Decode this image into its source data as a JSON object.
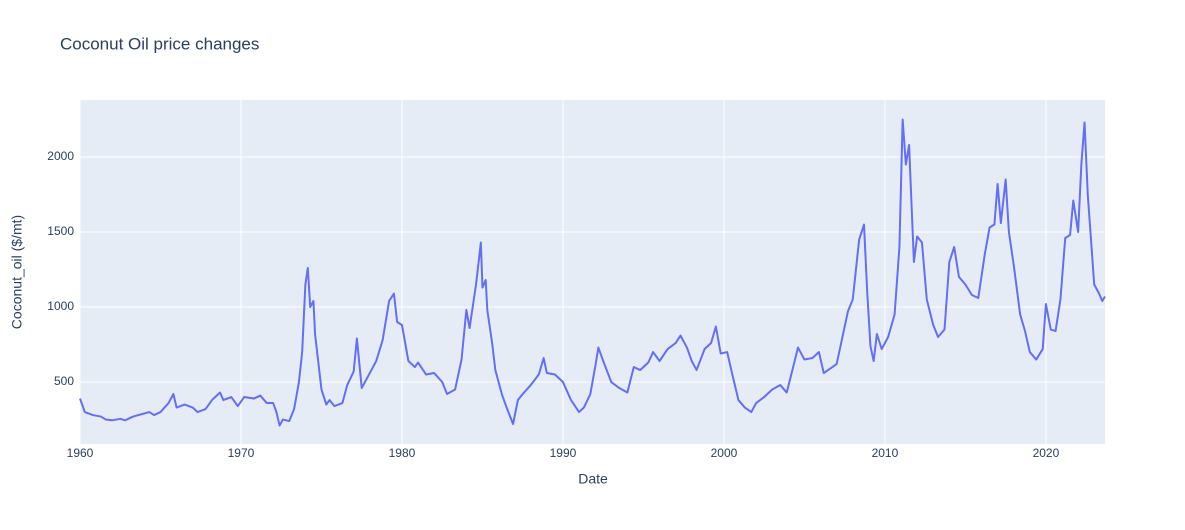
{
  "chart_data": {
    "type": "line",
    "title": "Coconut Oil price changes",
    "x_label": "Date",
    "y_label": "Coconut_oil ($/mt)",
    "color": "#636efa",
    "grid": true,
    "xlim": [
      1960,
      2023.67
    ],
    "xticks": [
      1960,
      1970,
      1980,
      1990,
      2000,
      2010,
      2020
    ],
    "ylim": [
      87,
      2380
    ],
    "yticks": [
      500,
      1000,
      1500,
      2000
    ],
    "x": [
      1960,
      1960.3,
      1960.8,
      1961.3,
      1961.6,
      1962,
      1962.5,
      1962.8,
      1963.3,
      1963.8,
      1964.3,
      1964.6,
      1965,
      1965.5,
      1965.8,
      1966,
      1966.5,
      1967,
      1967.3,
      1967.8,
      1968.2,
      1968.7,
      1968.9,
      1969.4,
      1969.8,
      1970.2,
      1970.8,
      1971.2,
      1971.6,
      1972,
      1972.2,
      1972.4,
      1972.6,
      1973,
      1973.3,
      1973.6,
      1973.8,
      1974,
      1974.15,
      1974.3,
      1974.5,
      1974.6,
      1975,
      1975.3,
      1975.5,
      1975.8,
      1976.3,
      1976.6,
      1977,
      1977.2,
      1977.5,
      1978,
      1978.4,
      1978.8,
      1979.2,
      1979.5,
      1979.7,
      1980,
      1980.4,
      1980.8,
      1981,
      1981.5,
      1982,
      1982.5,
      1982.8,
      1983.3,
      1983.7,
      1984,
      1984.2,
      1984.6,
      1984.9,
      1985,
      1985.2,
      1985.3,
      1985.6,
      1985.8,
      1986.2,
      1986.5,
      1986.9,
      1987.2,
      1987.5,
      1988,
      1988.5,
      1988.8,
      1989,
      1989.5,
      1990,
      1990.5,
      1991,
      1991.3,
      1991.7,
      1992,
      1992.2,
      1992.5,
      1993,
      1993.5,
      1994,
      1994.4,
      1994.8,
      1995.3,
      1995.6,
      1996,
      1996.5,
      1997,
      1997.3,
      1997.7,
      1998,
      1998.3,
      1998.8,
      1999.2,
      1999.5,
      1999.8,
      2000.2,
      2000.5,
      2000.9,
      2001.3,
      2001.7,
      2002,
      2002.5,
      2003,
      2003.5,
      2003.9,
      2004.3,
      2004.6,
      2005,
      2005.5,
      2005.9,
      2006.2,
      2006.6,
      2007,
      2007.4,
      2007.7,
      2008,
      2008.4,
      2008.7,
      2008.9,
      2009.1,
      2009.3,
      2009.5,
      2009.8,
      2010.2,
      2010.6,
      2010.9,
      2011.1,
      2011.3,
      2011.5,
      2011.8,
      2012,
      2012.3,
      2012.6,
      2013,
      2013.3,
      2013.7,
      2014,
      2014.3,
      2014.6,
      2015,
      2015.4,
      2015.8,
      2016.2,
      2016.5,
      2016.8,
      2017,
      2017.2,
      2017.5,
      2017.7,
      2018,
      2018.4,
      2018.7,
      2019,
      2019.4,
      2019.8,
      2020,
      2020.3,
      2020.6,
      2020.9,
      2021.2,
      2021.5,
      2021.7,
      2022,
      2022.2,
      2022.4,
      2022.6,
      2023,
      2023.3,
      2023.5,
      2023.67
    ],
    "values": [
      390,
      300,
      280,
      270,
      250,
      245,
      255,
      245,
      270,
      285,
      300,
      280,
      300,
      360,
      420,
      330,
      350,
      330,
      300,
      320,
      380,
      430,
      380,
      400,
      340,
      400,
      390,
      410,
      360,
      360,
      300,
      210,
      250,
      240,
      320,
      500,
      700,
      1150,
      1260,
      1000,
      1040,
      820,
      450,
      350,
      380,
      340,
      360,
      480,
      570,
      790,
      460,
      560,
      640,
      780,
      1040,
      1090,
      900,
      880,
      640,
      600,
      630,
      550,
      560,
      500,
      420,
      450,
      650,
      980,
      860,
      1150,
      1430,
      1130,
      1180,
      980,
      760,
      580,
      420,
      330,
      220,
      380,
      420,
      480,
      550,
      660,
      560,
      550,
      500,
      380,
      300,
      330,
      420,
      600,
      730,
      640,
      500,
      460,
      430,
      600,
      580,
      630,
      700,
      640,
      720,
      760,
      810,
      730,
      640,
      580,
      720,
      760,
      870,
      690,
      700,
      560,
      380,
      330,
      300,
      360,
      400,
      450,
      480,
      430,
      600,
      730,
      650,
      660,
      700,
      560,
      590,
      620,
      820,
      970,
      1050,
      1450,
      1550,
      1100,
      740,
      640,
      820,
      720,
      800,
      950,
      1400,
      2250,
      1950,
      2080,
      1300,
      1470,
      1430,
      1050,
      880,
      800,
      850,
      1300,
      1400,
      1200,
      1150,
      1080,
      1060,
      1350,
      1530,
      1550,
      1820,
      1560,
      1850,
      1500,
      1280,
      950,
      840,
      700,
      650,
      720,
      1020,
      850,
      840,
      1050,
      1460,
      1480,
      1710,
      1500,
      1950,
      2230,
      1750,
      1150,
      1090,
      1040,
      1070
    ]
  }
}
